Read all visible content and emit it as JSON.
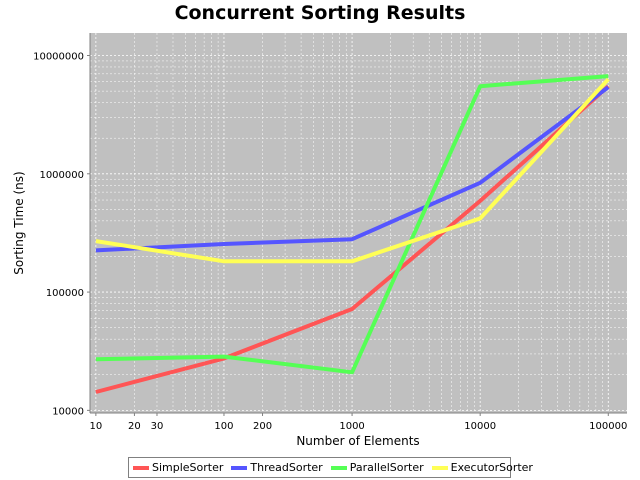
{
  "chart_data": {
    "type": "line",
    "title": "Concurrent Sorting Results",
    "xlabel": "Number of Elements",
    "ylabel": "Sorting Time (ns)",
    "xscale": "log",
    "yscale": "log",
    "xlim": [
      9,
      140000
    ],
    "ylim": [
      9500,
      15500000
    ],
    "grid": true,
    "legend_position": "bottom",
    "x_ticks": [
      10,
      20,
      30,
      100,
      200,
      1000,
      10000,
      100000
    ],
    "x_tick_labels": [
      "10",
      "20",
      "30",
      "100",
      "200",
      "1000",
      "10000",
      "100000"
    ],
    "y_ticks": [
      10000,
      100000,
      1000000,
      10000000
    ],
    "y_tick_labels": [
      "10000",
      "100000",
      "1000000",
      "10000000"
    ],
    "x": [
      10,
      100,
      1000,
      10000,
      100000
    ],
    "series": [
      {
        "name": "SimpleSorter",
        "color": "#ff5555",
        "values": [
          14300,
          27500,
          72000,
          590000,
          5500000
        ]
      },
      {
        "name": "ThreadSorter",
        "color": "#5555ff",
        "values": [
          225000,
          255000,
          280000,
          840000,
          5400000
        ]
      },
      {
        "name": "ParallelSorter",
        "color": "#55ff55",
        "values": [
          27000,
          28500,
          21000,
          5500000,
          6700000
        ]
      },
      {
        "name": "ExecutorSorter",
        "color": "#ffff55",
        "values": [
          270000,
          182000,
          182000,
          420000,
          6300000
        ]
      }
    ]
  }
}
